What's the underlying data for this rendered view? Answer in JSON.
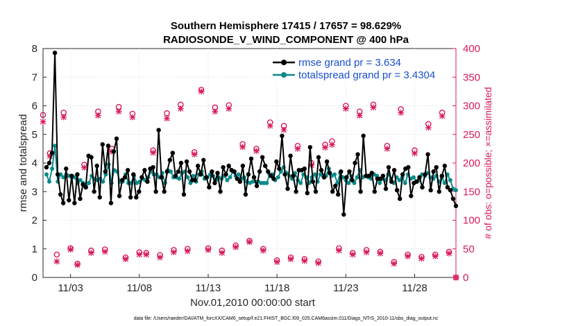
{
  "chart_data": {
    "type": "line",
    "title": "Southern Hemisphere 17415 / 17657 = 98.629%",
    "subtitle": "RADIOSONDE_V_WIND_COMPONENT @ 400 hPa",
    "xlabel": "Nov.01,2010 00:00:00 start",
    "ylabel": "rmse and totalspread",
    "ylabel_right": "# of obs: o=possible; ×=assimilated",
    "xlim": [
      1.0,
      31.0
    ],
    "ylim": [
      0,
      8
    ],
    "ylim_right": [
      0,
      400
    ],
    "x_tick_values": [
      3,
      8,
      13,
      18,
      23,
      28
    ],
    "x_tick_labels": [
      "11/03",
      "11/08",
      "11/13",
      "11/18",
      "11/23",
      "11/28"
    ],
    "y_ticks": [
      0,
      1,
      2,
      3,
      4,
      5,
      6,
      7,
      8
    ],
    "y_ticks_right": [
      0,
      50,
      100,
      150,
      200,
      250,
      300,
      350,
      400
    ],
    "legend": [
      "rmse grand pr = 3.634",
      "totalspread grand pr = 3.4304"
    ],
    "legend_position": "top-right",
    "footnote": "data file: /Users/raeder/DAI/ATM_forcXX/CAM6_setup/f.e21.FHIST_BGC.f09_025.CAM6assim.011/Diags_NTrS_2010-11/obs_diag_output.nc",
    "series": [
      {
        "name": "rmse",
        "color": "#000000",
        "marker": "star-dot",
        "values": [
          3.85,
          4.0,
          4.35,
          7.85,
          3.6,
          2.9,
          2.6,
          3.8,
          2.7,
          3.55,
          2.6,
          3.6,
          2.75,
          3.25,
          3.15,
          4.25,
          4.2,
          3.0,
          3.9,
          2.8,
          4.65,
          3.7,
          4.6,
          2.6,
          4.4,
          4.85,
          2.85,
          3.4,
          3.5,
          3.75,
          2.8,
          3.6,
          2.8,
          3.0,
          3.5,
          3.75,
          3.35,
          3.8,
          3.85,
          3.0,
          5.15,
          3.5,
          3.0,
          3.7,
          4.1,
          4.35,
          3.55,
          3.7,
          4.0,
          2.9,
          4.05,
          3.7,
          3.4,
          3.4,
          3.9,
          3.6,
          4.1,
          3.5,
          3.15,
          3.7,
          3.3,
          3.65,
          3.0,
          3.85,
          3.6,
          3.9,
          3.75,
          3.7,
          3.45,
          3.35,
          3.9,
          2.9,
          3.6,
          4.15,
          3.5,
          3.2,
          3.7,
          4.2,
          3.9,
          3.7,
          3.55,
          3.45,
          4.05,
          3.8,
          4.95,
          3.6,
          3.1,
          4.25,
          3.55,
          3.0,
          3.75,
          3.75,
          3.8,
          2.95,
          4.55,
          3.35,
          3.0,
          4.2,
          3.75,
          3.5,
          4.05,
          3.65,
          3.0,
          3.2,
          2.9,
          3.7,
          2.2,
          3.5,
          3.7,
          3.4,
          4.0,
          4.3,
          3.0,
          4.95,
          3.55,
          3.55,
          3.65,
          3.0,
          3.45,
          3.45,
          3.55,
          3.1,
          3.85,
          3.35,
          3.75,
          3.05,
          2.75,
          3.6,
          3.8,
          3.85,
          2.85,
          3.3,
          3.35,
          3.5,
          3.15,
          3.6,
          4.3,
          3.05,
          3.7,
          3.85,
          3.0,
          3.55,
          3.9,
          3.15,
          3.05,
          2.75,
          2.5
        ]
      },
      {
        "name": "totalspread",
        "color": "#0a8a8a",
        "marker": "dot",
        "values": [
          3.6,
          3.35,
          3.8,
          4.6,
          3.35,
          3.6,
          3.5,
          3.6,
          3.55,
          3.5,
          3.5,
          3.3,
          3.4,
          3.3,
          3.15,
          3.3,
          3.55,
          3.45,
          3.4,
          3.45,
          3.35,
          3.6,
          3.95,
          3.3,
          3.75,
          3.7,
          3.35,
          3.35,
          3.6,
          3.3,
          3.3,
          3.55,
          3.3,
          3.35,
          3.45,
          3.4,
          3.5,
          3.7,
          3.6,
          3.6,
          3.5,
          3.65,
          3.3,
          3.75,
          3.7,
          3.5,
          3.5,
          3.45,
          3.65,
          3.7,
          3.5,
          3.3,
          3.55,
          3.35,
          3.6,
          3.7,
          3.45,
          3.5,
          3.6,
          3.55,
          3.4,
          3.5,
          3.45,
          3.55,
          3.4,
          3.5,
          3.7,
          3.55,
          3.6,
          3.45,
          3.5,
          3.35,
          3.3,
          3.35,
          3.35,
          3.35,
          3.3,
          3.3,
          3.3,
          3.6,
          3.6,
          3.4,
          3.5,
          3.7,
          3.85,
          3.65,
          3.55,
          3.45,
          3.65,
          3.4,
          3.3,
          3.6,
          3.5,
          3.3,
          3.5,
          3.6,
          3.35,
          3.6,
          3.55,
          3.55,
          3.8,
          3.55,
          3.6,
          3.3,
          3.65,
          3.5,
          3.4,
          3.3,
          3.55,
          3.3,
          3.5,
          3.75,
          3.5,
          3.55,
          3.5,
          3.45,
          3.6,
          3.55,
          3.3,
          3.45,
          3.4,
          3.6,
          3.45,
          3.3,
          3.5,
          3.4,
          3.5,
          3.3,
          3.6,
          3.45,
          3.5,
          3.35,
          3.4,
          3.6,
          3.55,
          3.65,
          3.5,
          3.45,
          3.55,
          3.35,
          3.5,
          3.3,
          3.6,
          3.4,
          3.1,
          3.05
        ]
      },
      {
        "name": "obs possible",
        "axis": "right",
        "color": "#d8195a",
        "marker": "o",
        "values": [
          {
            "x": 1.0,
            "y": 284
          },
          {
            "x": 1.5,
            "y": 217
          },
          {
            "x": 2.0,
            "y": 40
          },
          {
            "x": 2.5,
            "y": 288
          },
          {
            "x": 3.0,
            "y": 51
          },
          {
            "x": 3.5,
            "y": 24
          },
          {
            "x": 4.0,
            "y": 197
          },
          {
            "x": 4.5,
            "y": 47
          },
          {
            "x": 5.0,
            "y": 290
          },
          {
            "x": 5.5,
            "y": 49
          },
          {
            "x": 6.0,
            "y": 225
          },
          {
            "x": 6.5,
            "y": 298
          },
          {
            "x": 7.0,
            "y": 35
          },
          {
            "x": 7.5,
            "y": 286
          },
          {
            "x": 8.0,
            "y": 44
          },
          {
            "x": 8.5,
            "y": 43
          },
          {
            "x": 9.0,
            "y": 222
          },
          {
            "x": 9.5,
            "y": 39
          },
          {
            "x": 10.0,
            "y": 287
          },
          {
            "x": 10.5,
            "y": 48
          },
          {
            "x": 11.0,
            "y": 302
          },
          {
            "x": 11.5,
            "y": 50
          },
          {
            "x": 12.0,
            "y": 219
          },
          {
            "x": 12.5,
            "y": 328
          },
          {
            "x": 13.0,
            "y": 51
          },
          {
            "x": 13.5,
            "y": 297
          },
          {
            "x": 14.0,
            "y": 47
          },
          {
            "x": 14.5,
            "y": 301
          },
          {
            "x": 15.0,
            "y": 56
          },
          {
            "x": 15.5,
            "y": 233
          },
          {
            "x": 16.0,
            "y": 64
          },
          {
            "x": 16.5,
            "y": 225
          },
          {
            "x": 17.0,
            "y": 50
          },
          {
            "x": 17.5,
            "y": 271
          },
          {
            "x": 18.0,
            "y": 30
          },
          {
            "x": 18.5,
            "y": 265
          },
          {
            "x": 19.0,
            "y": 35
          },
          {
            "x": 19.5,
            "y": 230
          },
          {
            "x": 20.0,
            "y": 32
          },
          {
            "x": 20.5,
            "y": 200
          },
          {
            "x": 21.0,
            "y": 28
          },
          {
            "x": 21.5,
            "y": 232
          },
          {
            "x": 22.0,
            "y": 238
          },
          {
            "x": 22.5,
            "y": 51
          },
          {
            "x": 23.0,
            "y": 300
          },
          {
            "x": 23.5,
            "y": 43
          },
          {
            "x": 24.0,
            "y": 290
          },
          {
            "x": 24.5,
            "y": 48
          },
          {
            "x": 25.0,
            "y": 302
          },
          {
            "x": 25.5,
            "y": 45
          },
          {
            "x": 26.0,
            "y": 230
          },
          {
            "x": 26.5,
            "y": 27
          },
          {
            "x": 27.0,
            "y": 294
          },
          {
            "x": 27.5,
            "y": 40
          },
          {
            "x": 28.0,
            "y": 222
          },
          {
            "x": 28.5,
            "y": 36
          },
          {
            "x": 29.0,
            "y": 268
          },
          {
            "x": 29.5,
            "y": 40
          },
          {
            "x": 30.0,
            "y": 288
          },
          {
            "x": 30.5,
            "y": 45
          },
          {
            "x": 31.0,
            "y": 0
          }
        ]
      },
      {
        "name": "obs assimilated",
        "axis": "right",
        "color": "#d8195a",
        "marker": "x",
        "values": [
          {
            "x": 1.0,
            "y": 272
          },
          {
            "x": 1.5,
            "y": 212
          },
          {
            "x": 2.0,
            "y": 28
          },
          {
            "x": 2.5,
            "y": 280
          },
          {
            "x": 3.0,
            "y": 49
          },
          {
            "x": 3.5,
            "y": 22
          },
          {
            "x": 4.0,
            "y": 192
          },
          {
            "x": 4.5,
            "y": 43
          },
          {
            "x": 5.0,
            "y": 283
          },
          {
            "x": 5.5,
            "y": 45
          },
          {
            "x": 6.0,
            "y": 220
          },
          {
            "x": 6.5,
            "y": 290
          },
          {
            "x": 7.0,
            "y": 32
          },
          {
            "x": 7.5,
            "y": 280
          },
          {
            "x": 8.0,
            "y": 40
          },
          {
            "x": 8.5,
            "y": 40
          },
          {
            "x": 9.0,
            "y": 218
          },
          {
            "x": 9.5,
            "y": 35
          },
          {
            "x": 10.0,
            "y": 278
          },
          {
            "x": 10.5,
            "y": 44
          },
          {
            "x": 11.0,
            "y": 295
          },
          {
            "x": 11.5,
            "y": 46
          },
          {
            "x": 12.0,
            "y": 215
          },
          {
            "x": 12.5,
            "y": 325
          },
          {
            "x": 13.0,
            "y": 48
          },
          {
            "x": 13.5,
            "y": 290
          },
          {
            "x": 14.0,
            "y": 43
          },
          {
            "x": 14.5,
            "y": 295
          },
          {
            "x": 15.0,
            "y": 53
          },
          {
            "x": 15.5,
            "y": 228
          },
          {
            "x": 16.0,
            "y": 62
          },
          {
            "x": 16.5,
            "y": 221
          },
          {
            "x": 17.0,
            "y": 47
          },
          {
            "x": 17.5,
            "y": 265
          },
          {
            "x": 18.0,
            "y": 27
          },
          {
            "x": 18.5,
            "y": 258
          },
          {
            "x": 19.0,
            "y": 32
          },
          {
            "x": 19.5,
            "y": 225
          },
          {
            "x": 20.0,
            "y": 29
          },
          {
            "x": 20.5,
            "y": 196
          },
          {
            "x": 21.0,
            "y": 25
          },
          {
            "x": 21.5,
            "y": 227
          },
          {
            "x": 22.0,
            "y": 232
          },
          {
            "x": 22.5,
            "y": 47
          },
          {
            "x": 23.0,
            "y": 295
          },
          {
            "x": 23.5,
            "y": 40
          },
          {
            "x": 24.0,
            "y": 283
          },
          {
            "x": 24.5,
            "y": 44
          },
          {
            "x": 25.0,
            "y": 297
          },
          {
            "x": 25.5,
            "y": 42
          },
          {
            "x": 26.0,
            "y": 225
          },
          {
            "x": 26.5,
            "y": 24
          },
          {
            "x": 27.0,
            "y": 288
          },
          {
            "x": 27.5,
            "y": 37
          },
          {
            "x": 28.0,
            "y": 217
          },
          {
            "x": 28.5,
            "y": 33
          },
          {
            "x": 29.0,
            "y": 262
          },
          {
            "x": 29.5,
            "y": 37
          },
          {
            "x": 30.0,
            "y": 282
          },
          {
            "x": 30.5,
            "y": 42
          },
          {
            "x": 31.0,
            "y": 0
          }
        ]
      }
    ]
  }
}
